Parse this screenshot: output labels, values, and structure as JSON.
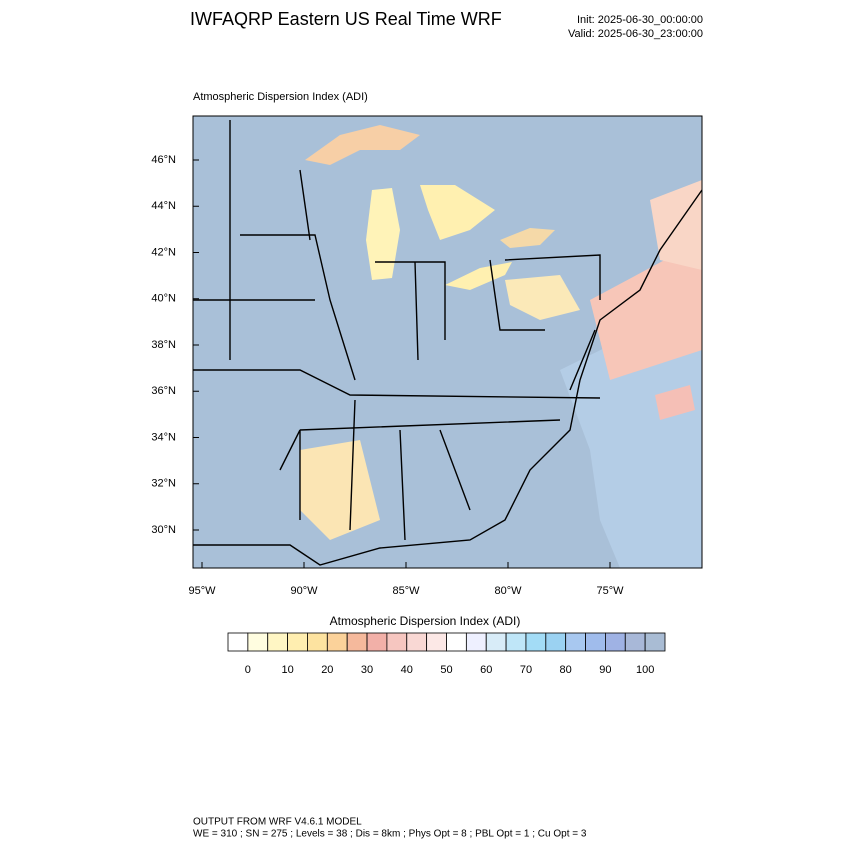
{
  "header": {
    "title": "IWFAQRP Eastern US Real Time WRF",
    "init": "Init: 2025-06-30_00:00:00",
    "valid": "Valid: 2025-06-30_23:00:00"
  },
  "map": {
    "subtitle": "Atmospheric Dispersion Index   (ADI)",
    "lat_labels": [
      "46°N",
      "44°N",
      "42°N",
      "40°N",
      "38°N",
      "36°N",
      "34°N",
      "32°N",
      "30°N"
    ],
    "lon_labels": [
      "95°W",
      "90°W",
      "85°W",
      "80°W",
      "75°W"
    ]
  },
  "colorbar": {
    "title": "Atmospheric Dispersion Index  (ADI)",
    "labels": [
      0,
      10,
      20,
      30,
      40,
      50,
      60,
      70,
      80,
      90,
      100
    ],
    "colors": [
      "#ffffff",
      "#fffde0",
      "#fff6c4",
      "#ffeeb0",
      "#fde3a0",
      "#fbd29a",
      "#f5b99c",
      "#f2b0a8",
      "#f6c6c0",
      "#f9d8d4",
      "#fce8e6",
      "#ffffff",
      "#eef0ff",
      "#d8ecf8",
      "#bfe6f8",
      "#a3dcf6",
      "#9bd2f2",
      "#a8c8f0",
      "#a0bcec",
      "#9fb2e4",
      "#a8b8d8",
      "#a9bcd4"
    ]
  },
  "footer": {
    "line1": "OUTPUT FROM WRF V4.6.1 MODEL",
    "line2": "WE = 310 ; SN = 275 ; Levels = 38 ; Dis = 8km ; Phys Opt = 8 ; PBL Opt = 1 ; Cu Opt = 3"
  }
}
